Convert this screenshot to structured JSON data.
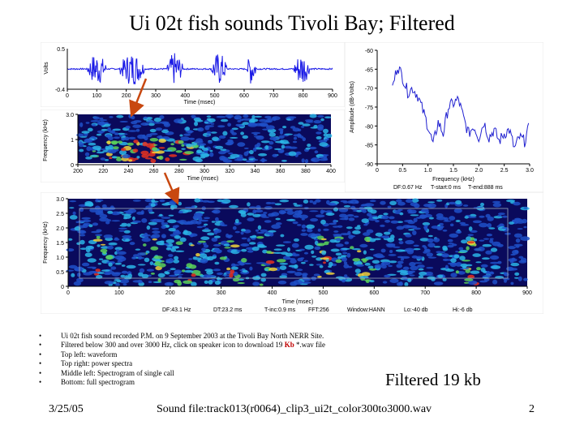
{
  "slide": {
    "title": "Ui 02t fish sounds Tivoli Bay; Filtered",
    "bullets": [
      "Ui 02t fish sound recorded  P.M. on 9 September 2003 at the Tivoli Bay North NERR Site.",
      "Top left: waveform",
      "Top right: power spectra",
      "Middle left: Spectrogram of single call",
      "Bottom: full spectrogram"
    ],
    "filtered_bullet": {
      "before": "Filtered below 300 and over 3000 Hz, click on speaker icon to download 19 ",
      "link": "Kb",
      "after": " *.wav file"
    },
    "filtered_label": "Filtered 19 kb",
    "footer": {
      "date": "3/25/05",
      "sound_file": "Sound file:track013(r0064)_clip3_ui2t_color300to3000.wav",
      "page": "2"
    }
  },
  "colors": {
    "waveform": "#1a1ae6",
    "spectrum": "#2020d0",
    "spectrogram_background": "#0a0a5c",
    "arrow": "#c84810"
  },
  "chart_data": [
    {
      "id": "waveform",
      "type": "line",
      "xlabel": "Time (msec)",
      "ylabel": "Volts",
      "xlim": [
        0,
        900
      ],
      "xticks": [
        "0",
        "100",
        "200",
        "300",
        "400",
        "500",
        "600",
        "700",
        "800",
        "900"
      ],
      "ylim": [
        -0.4,
        0.5
      ],
      "yticks": [
        "0.5",
        "-0.4"
      ],
      "bursts_msec": [
        [
          70,
          130
        ],
        [
          180,
          260
        ],
        [
          340,
          390
        ],
        [
          490,
          540
        ],
        [
          610,
          640
        ],
        [
          770,
          820
        ]
      ]
    },
    {
      "id": "power-spectrum",
      "type": "line",
      "xlabel": "Frequency (kHz)",
      "ylabel": "Amplitude (dB-Volts)",
      "xlim": [
        0,
        3.0
      ],
      "xticks": [
        "0",
        "0.5",
        "1.0",
        "1.5",
        "2.0",
        "2.5",
        "3.0"
      ],
      "ylim": [
        -90,
        -60
      ],
      "yticks": [
        "-60",
        "-65",
        "-70",
        "-75",
        "-80",
        "-85",
        "-90"
      ],
      "x": [
        0.3,
        0.4,
        0.5,
        0.6,
        0.7,
        0.8,
        0.9,
        1.0,
        1.1,
        1.2,
        1.3,
        1.4,
        1.5,
        1.6,
        1.7,
        1.8,
        1.9,
        2.0,
        2.1,
        2.2,
        2.3,
        2.4,
        2.5,
        2.6,
        2.7,
        2.8,
        2.9,
        3.0
      ],
      "y": [
        -70,
        -64,
        -67,
        -71,
        -70,
        -72,
        -76,
        -80,
        -85,
        -79,
        -82,
        -75,
        -74,
        -73,
        -78,
        -82,
        -80,
        -83,
        -79,
        -83,
        -81,
        -84,
        -82,
        -81,
        -86,
        -83,
        -84,
        -80
      ],
      "footnote": [
        "DF:0.67 Hz",
        "T-start:0 ms",
        "T-end:888 ms"
      ]
    },
    {
      "id": "call-spectrogram",
      "type": "heatmap",
      "xlabel": "Time (msec)",
      "ylabel": "Frequency (kHz)",
      "xlim": [
        200,
        400
      ],
      "xticks": [
        "200",
        "220",
        "240",
        "260",
        "280",
        "300",
        "320",
        "340",
        "360",
        "380",
        "400"
      ],
      "ylim": [
        0,
        3.0
      ],
      "yticks": [
        "3.0",
        "1",
        "0"
      ]
    },
    {
      "id": "full-spectrogram",
      "type": "heatmap",
      "xlabel": "Time (msec)",
      "ylabel": "Frequency (kHz)",
      "xlim": [
        0,
        900
      ],
      "xticks": [
        "0",
        "100",
        "200",
        "300",
        "400",
        "500",
        "600",
        "700",
        "800",
        "900"
      ],
      "ylim": [
        0,
        3.0
      ],
      "yticks": [
        "3.0",
        "2.5",
        "2.0",
        "1.5",
        "1.0",
        "0.5",
        "0"
      ],
      "call_times_msec": [
        60,
        170,
        240,
        320,
        400,
        510,
        580,
        790
      ],
      "footnote": [
        "DF:43.1 Hz",
        "DT:23.2 ms",
        "T-inc:0.9 ms",
        "FFT:256",
        "Window:HANN",
        "Lo:-40 db",
        "Hi:-6 db"
      ]
    }
  ]
}
